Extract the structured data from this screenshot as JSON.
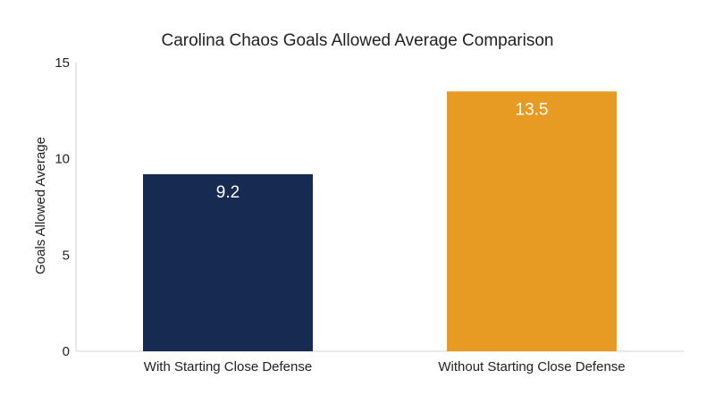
{
  "chart_data": {
    "type": "bar",
    "title": "Carolina Chaos Goals Allowed Average Comparison",
    "xlabel": "",
    "ylabel": "Goals Allowed Average",
    "categories": [
      "With Starting Close Defense",
      "Without Starting Close Defense"
    ],
    "values": [
      9.2,
      13.5
    ],
    "data_labels": [
      "9.2",
      "13.5"
    ],
    "bar_colors": [
      "#172b52",
      "#e89b22"
    ],
    "data_label_color": "#ffffff",
    "ylim": [
      0,
      15
    ],
    "yticks": [
      0,
      5,
      10,
      15
    ],
    "grid": false,
    "legend": "none"
  }
}
